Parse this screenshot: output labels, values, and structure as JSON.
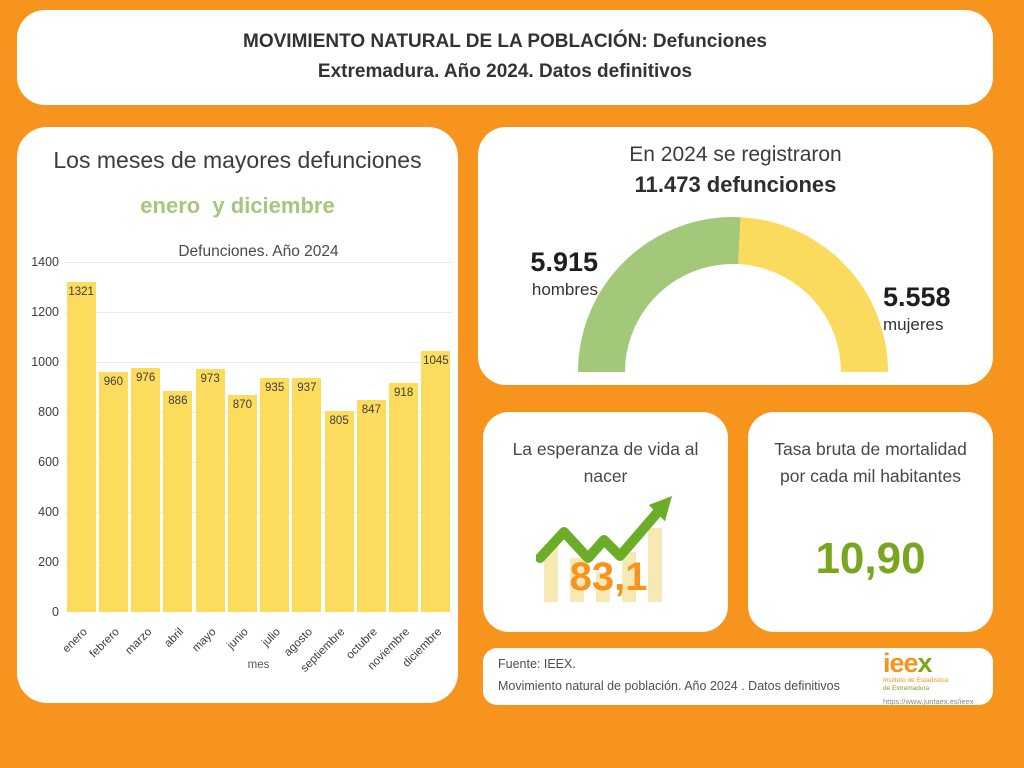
{
  "palette": {
    "background_orange": "#F7941D",
    "card_white": "#FFFFFF",
    "text_dark": "#3C3C3C",
    "green_accent": "#A4C87A",
    "bar_yellow": "#FBDC5C",
    "gauge_yellow": "#FADB5E",
    "arrow_green": "#6CAD28",
    "pale_bar": "#F6E9B4",
    "value_orange": "#F7941D",
    "value_green": "#7AA521"
  },
  "header": {
    "title_line1": "MOVIMIENTO NATURAL DE LA POBLACIÓN: Defunciones",
    "title_line2": "Extremadura. Año 2024. Datos definitivos"
  },
  "left_panel": {
    "title": "Los meses de mayores defunciones",
    "highlight": "enero  y diciembre",
    "chart_title": "Defunciones. Año 2024",
    "xlabel": "mes"
  },
  "chart_data": [
    {
      "type": "bar",
      "title": "Defunciones. Año 2024",
      "categories": [
        "enero",
        "febrero",
        "marzo",
        "abril",
        "mayo",
        "junio",
        "julio",
        "agosto",
        "septiembre",
        "octubre",
        "noviembre",
        "diciembre"
      ],
      "values": [
        1321,
        960,
        976,
        886,
        973,
        870,
        935,
        937,
        805,
        847,
        918,
        1045
      ],
      "xlabel": "mes",
      "ylabel": "",
      "ylim": [
        0,
        1400
      ],
      "yticks": [
        0,
        200,
        400,
        600,
        800,
        1000,
        1200,
        1400
      ],
      "grid": true,
      "legend": "none",
      "bar_color": "#FBDC5C"
    },
    {
      "type": "pie",
      "subtype": "half-donut",
      "title": "En 2024 se registraron 11.473 defunciones",
      "slices": [
        {
          "label": "hombres",
          "value": 5915,
          "display": "5.915",
          "color": "#A4C87A"
        },
        {
          "label": "mujeres",
          "value": 5558,
          "display": "5.558",
          "color": "#FADB5E"
        }
      ],
      "total": 11473,
      "legend_position": "sides"
    }
  ],
  "gauge_panel": {
    "title_line1": "En 2024 se registraron",
    "title_line2": "11.473 defunciones",
    "left": {
      "value": "5.915",
      "label": "hombres"
    },
    "right": {
      "value": "5.558",
      "label": "mujeres"
    }
  },
  "life_card": {
    "title": "La esperanza de vida al nacer",
    "value": "83,1"
  },
  "mortality_card": {
    "title": "Tasa bruta de mortalidad por cada mil habitantes",
    "value": "10,90"
  },
  "footer": {
    "source_line1": "Fuente: IEEX.",
    "source_line2": "Movimiento natural de población. Año 2024 . Datos definitivos",
    "logo": {
      "text_orange": "iee",
      "text_green": "x",
      "sub_line1": "Instituto de Estadística",
      "sub_line2": "de Extremadura",
      "url": "https://www.juntaex.es/ieex"
    }
  }
}
